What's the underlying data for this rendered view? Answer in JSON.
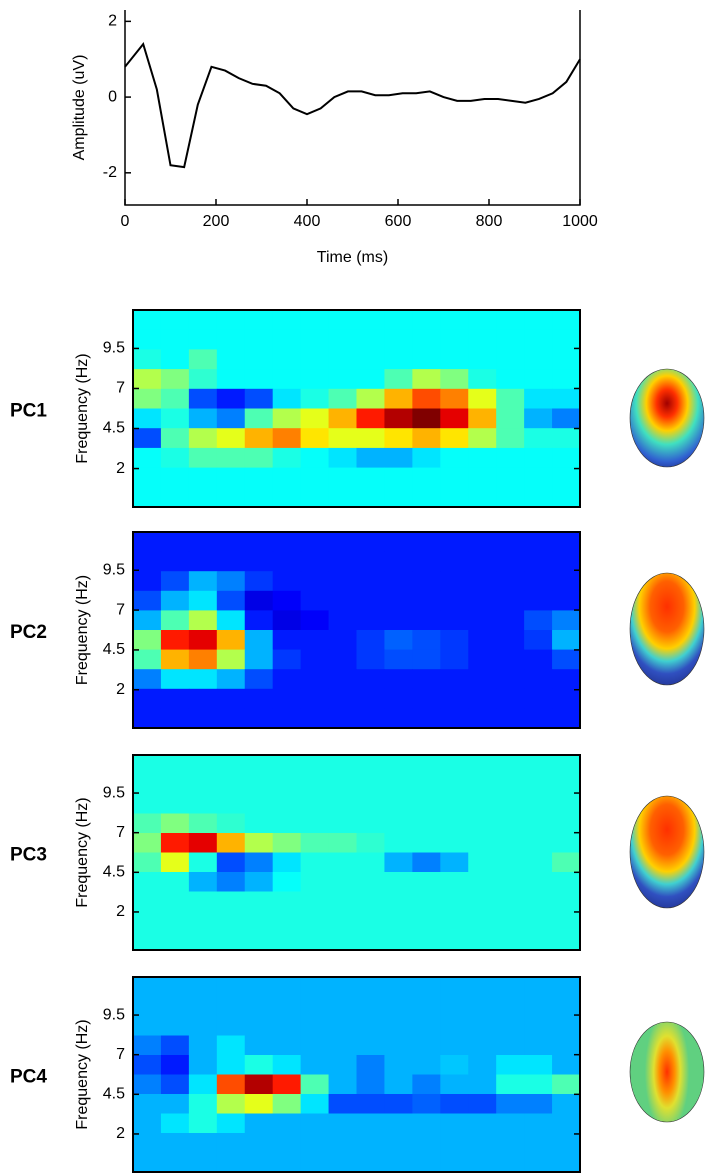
{
  "chart_data": [
    {
      "type": "line",
      "xlabel": "Time (ms)",
      "ylabel": "Amplitude (uV)",
      "color": "#000000",
      "x": [
        0,
        40,
        70,
        100,
        130,
        160,
        190,
        220,
        250,
        280,
        310,
        340,
        370,
        400,
        430,
        460,
        490,
        520,
        550,
        580,
        610,
        640,
        670,
        700,
        730,
        760,
        790,
        820,
        850,
        880,
        910,
        940,
        970,
        1000
      ],
      "values": [
        0.8,
        1.4,
        0.2,
        -1.8,
        -1.85,
        -0.2,
        0.8,
        0.7,
        0.5,
        0.35,
        0.3,
        0.1,
        -0.3,
        -0.45,
        -0.3,
        0,
        0.15,
        0.15,
        0.05,
        0.05,
        0.1,
        0.1,
        0.15,
        0,
        -0.1,
        -0.1,
        -0.05,
        -0.05,
        -0.1,
        -0.15,
        -0.05,
        0.1,
        0.4,
        1.0
      ],
      "xlim": [
        0,
        1000
      ],
      "xticks": [
        0,
        200,
        400,
        600,
        800,
        1000
      ],
      "ylim": [
        -2.85,
        2.3
      ],
      "yticks": [
        -2,
        0,
        2
      ]
    },
    {
      "type": "heatmap",
      "title": "PC1",
      "ylabel": "Frequency (Hz)",
      "ylim": [
        -0.4,
        11.9
      ],
      "yticks": [
        2,
        4.5,
        7,
        9.5
      ],
      "zlim": [
        0,
        1
      ],
      "z": [
        [
          0.38,
          0.38,
          0.38,
          0.38,
          0.38,
          0.38,
          0.38,
          0.38,
          0.38,
          0.38,
          0.38,
          0.38,
          0.38,
          0.38,
          0.38,
          0.38
        ],
        [
          0.38,
          0.38,
          0.38,
          0.38,
          0.38,
          0.38,
          0.38,
          0.38,
          0.38,
          0.38,
          0.38,
          0.38,
          0.38,
          0.38,
          0.38,
          0.38
        ],
        [
          0.4,
          0.38,
          0.45,
          0.38,
          0.38,
          0.38,
          0.38,
          0.38,
          0.38,
          0.38,
          0.38,
          0.38,
          0.38,
          0.38,
          0.38,
          0.38
        ],
        [
          0.55,
          0.5,
          0.42,
          0.38,
          0.38,
          0.38,
          0.38,
          0.38,
          0.38,
          0.45,
          0.55,
          0.5,
          0.4,
          0.38,
          0.38,
          0.38
        ],
        [
          0.5,
          0.45,
          0.2,
          0.15,
          0.2,
          0.35,
          0.4,
          0.45,
          0.55,
          0.7,
          0.8,
          0.75,
          0.6,
          0.45,
          0.35,
          0.35
        ],
        [
          0.35,
          0.4,
          0.3,
          0.25,
          0.45,
          0.55,
          0.6,
          0.7,
          0.85,
          0.95,
          1.0,
          0.9,
          0.7,
          0.45,
          0.3,
          0.25
        ],
        [
          0.2,
          0.45,
          0.55,
          0.6,
          0.7,
          0.75,
          0.65,
          0.6,
          0.6,
          0.65,
          0.7,
          0.65,
          0.55,
          0.45,
          0.4,
          0.4
        ],
        [
          0.38,
          0.4,
          0.45,
          0.45,
          0.45,
          0.4,
          0.38,
          0.35,
          0.3,
          0.3,
          0.35,
          0.38,
          0.38,
          0.38,
          0.38,
          0.38
        ],
        [
          0.38,
          0.38,
          0.38,
          0.38,
          0.38,
          0.38,
          0.38,
          0.38,
          0.38,
          0.38,
          0.38,
          0.38,
          0.38,
          0.38,
          0.38,
          0.38
        ],
        [
          0.38,
          0.38,
          0.38,
          0.38,
          0.38,
          0.38,
          0.38,
          0.38,
          0.38,
          0.38,
          0.38,
          0.38,
          0.38,
          0.38,
          0.38,
          0.38
        ]
      ]
    },
    {
      "type": "heatmap",
      "title": "PC2",
      "ylabel": "Frequency (Hz)",
      "ylim": [
        -0.4,
        11.9
      ],
      "yticks": [
        2,
        4.5,
        7,
        9.5
      ],
      "zlim": [
        0,
        1
      ],
      "z": [
        [
          0.15,
          0.15,
          0.15,
          0.15,
          0.15,
          0.15,
          0.15,
          0.15,
          0.15,
          0.15,
          0.15,
          0.15,
          0.15,
          0.15,
          0.15,
          0.15
        ],
        [
          0.15,
          0.15,
          0.15,
          0.15,
          0.15,
          0.15,
          0.15,
          0.15,
          0.15,
          0.15,
          0.15,
          0.15,
          0.15,
          0.15,
          0.15,
          0.15
        ],
        [
          0.15,
          0.2,
          0.3,
          0.25,
          0.18,
          0.15,
          0.15,
          0.15,
          0.15,
          0.15,
          0.15,
          0.15,
          0.15,
          0.15,
          0.15,
          0.15
        ],
        [
          0.2,
          0.3,
          0.35,
          0.2,
          0.1,
          0.12,
          0.15,
          0.15,
          0.15,
          0.15,
          0.15,
          0.15,
          0.15,
          0.15,
          0.15,
          0.15
        ],
        [
          0.3,
          0.45,
          0.55,
          0.35,
          0.15,
          0.1,
          0.12,
          0.15,
          0.15,
          0.15,
          0.15,
          0.15,
          0.15,
          0.15,
          0.2,
          0.25
        ],
        [
          0.5,
          0.85,
          0.9,
          0.7,
          0.3,
          0.15,
          0.15,
          0.15,
          0.18,
          0.22,
          0.2,
          0.18,
          0.15,
          0.15,
          0.18,
          0.3
        ],
        [
          0.45,
          0.7,
          0.75,
          0.55,
          0.3,
          0.18,
          0.15,
          0.15,
          0.18,
          0.2,
          0.2,
          0.18,
          0.15,
          0.15,
          0.15,
          0.2
        ],
        [
          0.25,
          0.35,
          0.35,
          0.3,
          0.2,
          0.15,
          0.15,
          0.15,
          0.15,
          0.15,
          0.15,
          0.15,
          0.15,
          0.15,
          0.15,
          0.15
        ],
        [
          0.15,
          0.15,
          0.15,
          0.15,
          0.15,
          0.15,
          0.15,
          0.15,
          0.15,
          0.15,
          0.15,
          0.15,
          0.15,
          0.15,
          0.15,
          0.15
        ],
        [
          0.15,
          0.15,
          0.15,
          0.15,
          0.15,
          0.15,
          0.15,
          0.15,
          0.15,
          0.15,
          0.15,
          0.15,
          0.15,
          0.15,
          0.15,
          0.15
        ]
      ]
    },
    {
      "type": "heatmap",
      "title": "PC3",
      "ylabel": "Frequency (Hz)",
      "ylim": [
        -0.4,
        11.9
      ],
      "yticks": [
        2,
        4.5,
        7,
        9.5
      ],
      "zlim": [
        0,
        1
      ],
      "z": [
        [
          0.4,
          0.4,
          0.4,
          0.4,
          0.4,
          0.4,
          0.4,
          0.4,
          0.4,
          0.4,
          0.4,
          0.4,
          0.4,
          0.4,
          0.4,
          0.4
        ],
        [
          0.4,
          0.4,
          0.4,
          0.4,
          0.4,
          0.4,
          0.4,
          0.4,
          0.4,
          0.4,
          0.4,
          0.4,
          0.4,
          0.4,
          0.4,
          0.4
        ],
        [
          0.4,
          0.4,
          0.4,
          0.4,
          0.4,
          0.4,
          0.4,
          0.4,
          0.4,
          0.4,
          0.4,
          0.4,
          0.4,
          0.4,
          0.4,
          0.4
        ],
        [
          0.45,
          0.5,
          0.45,
          0.42,
          0.4,
          0.4,
          0.4,
          0.4,
          0.4,
          0.4,
          0.4,
          0.4,
          0.4,
          0.4,
          0.4,
          0.4
        ],
        [
          0.5,
          0.85,
          0.9,
          0.7,
          0.55,
          0.5,
          0.45,
          0.45,
          0.42,
          0.4,
          0.4,
          0.4,
          0.4,
          0.4,
          0.4,
          0.4
        ],
        [
          0.45,
          0.6,
          0.4,
          0.2,
          0.25,
          0.35,
          0.4,
          0.4,
          0.4,
          0.3,
          0.25,
          0.3,
          0.4,
          0.4,
          0.4,
          0.45
        ],
        [
          0.4,
          0.4,
          0.3,
          0.25,
          0.3,
          0.38,
          0.4,
          0.4,
          0.4,
          0.4,
          0.4,
          0.4,
          0.4,
          0.4,
          0.4,
          0.4
        ],
        [
          0.4,
          0.4,
          0.4,
          0.4,
          0.4,
          0.4,
          0.4,
          0.4,
          0.4,
          0.4,
          0.4,
          0.4,
          0.4,
          0.4,
          0.4,
          0.4
        ],
        [
          0.4,
          0.4,
          0.4,
          0.4,
          0.4,
          0.4,
          0.4,
          0.4,
          0.4,
          0.4,
          0.4,
          0.4,
          0.4,
          0.4,
          0.4,
          0.4
        ],
        [
          0.4,
          0.4,
          0.4,
          0.4,
          0.4,
          0.4,
          0.4,
          0.4,
          0.4,
          0.4,
          0.4,
          0.4,
          0.4,
          0.4,
          0.4,
          0.4
        ]
      ]
    },
    {
      "type": "heatmap",
      "title": "PC4",
      "ylabel": "Frequency (Hz)",
      "ylim": [
        -0.4,
        11.9
      ],
      "yticks": [
        2,
        4.5,
        7,
        9.5
      ],
      "zlim": [
        0,
        1
      ],
      "z": [
        [
          0.3,
          0.3,
          0.3,
          0.3,
          0.3,
          0.3,
          0.3,
          0.3,
          0.3,
          0.3,
          0.3,
          0.3,
          0.3,
          0.3,
          0.3,
          0.3
        ],
        [
          0.3,
          0.3,
          0.3,
          0.3,
          0.3,
          0.3,
          0.3,
          0.3,
          0.3,
          0.3,
          0.3,
          0.3,
          0.3,
          0.3,
          0.3,
          0.3
        ],
        [
          0.3,
          0.3,
          0.3,
          0.3,
          0.3,
          0.3,
          0.3,
          0.3,
          0.3,
          0.3,
          0.3,
          0.3,
          0.3,
          0.3,
          0.3,
          0.3
        ],
        [
          0.25,
          0.2,
          0.3,
          0.35,
          0.3,
          0.3,
          0.3,
          0.3,
          0.3,
          0.3,
          0.3,
          0.3,
          0.3,
          0.3,
          0.3,
          0.3
        ],
        [
          0.2,
          0.15,
          0.3,
          0.35,
          0.4,
          0.35,
          0.3,
          0.3,
          0.25,
          0.3,
          0.3,
          0.32,
          0.3,
          0.35,
          0.35,
          0.3
        ],
        [
          0.25,
          0.2,
          0.35,
          0.8,
          0.95,
          0.85,
          0.45,
          0.3,
          0.25,
          0.3,
          0.25,
          0.3,
          0.3,
          0.4,
          0.4,
          0.45
        ],
        [
          0.3,
          0.3,
          0.4,
          0.55,
          0.6,
          0.5,
          0.35,
          0.2,
          0.2,
          0.2,
          0.22,
          0.2,
          0.2,
          0.25,
          0.25,
          0.3
        ],
        [
          0.3,
          0.35,
          0.4,
          0.35,
          0.3,
          0.3,
          0.3,
          0.3,
          0.3,
          0.3,
          0.3,
          0.3,
          0.3,
          0.3,
          0.3,
          0.3
        ],
        [
          0.3,
          0.3,
          0.3,
          0.3,
          0.3,
          0.3,
          0.3,
          0.3,
          0.3,
          0.3,
          0.3,
          0.3,
          0.3,
          0.3,
          0.3,
          0.3
        ],
        [
          0.3,
          0.3,
          0.3,
          0.3,
          0.3,
          0.3,
          0.3,
          0.3,
          0.3,
          0.3,
          0.3,
          0.3,
          0.3,
          0.3,
          0.3,
          0.3
        ]
      ]
    }
  ]
}
